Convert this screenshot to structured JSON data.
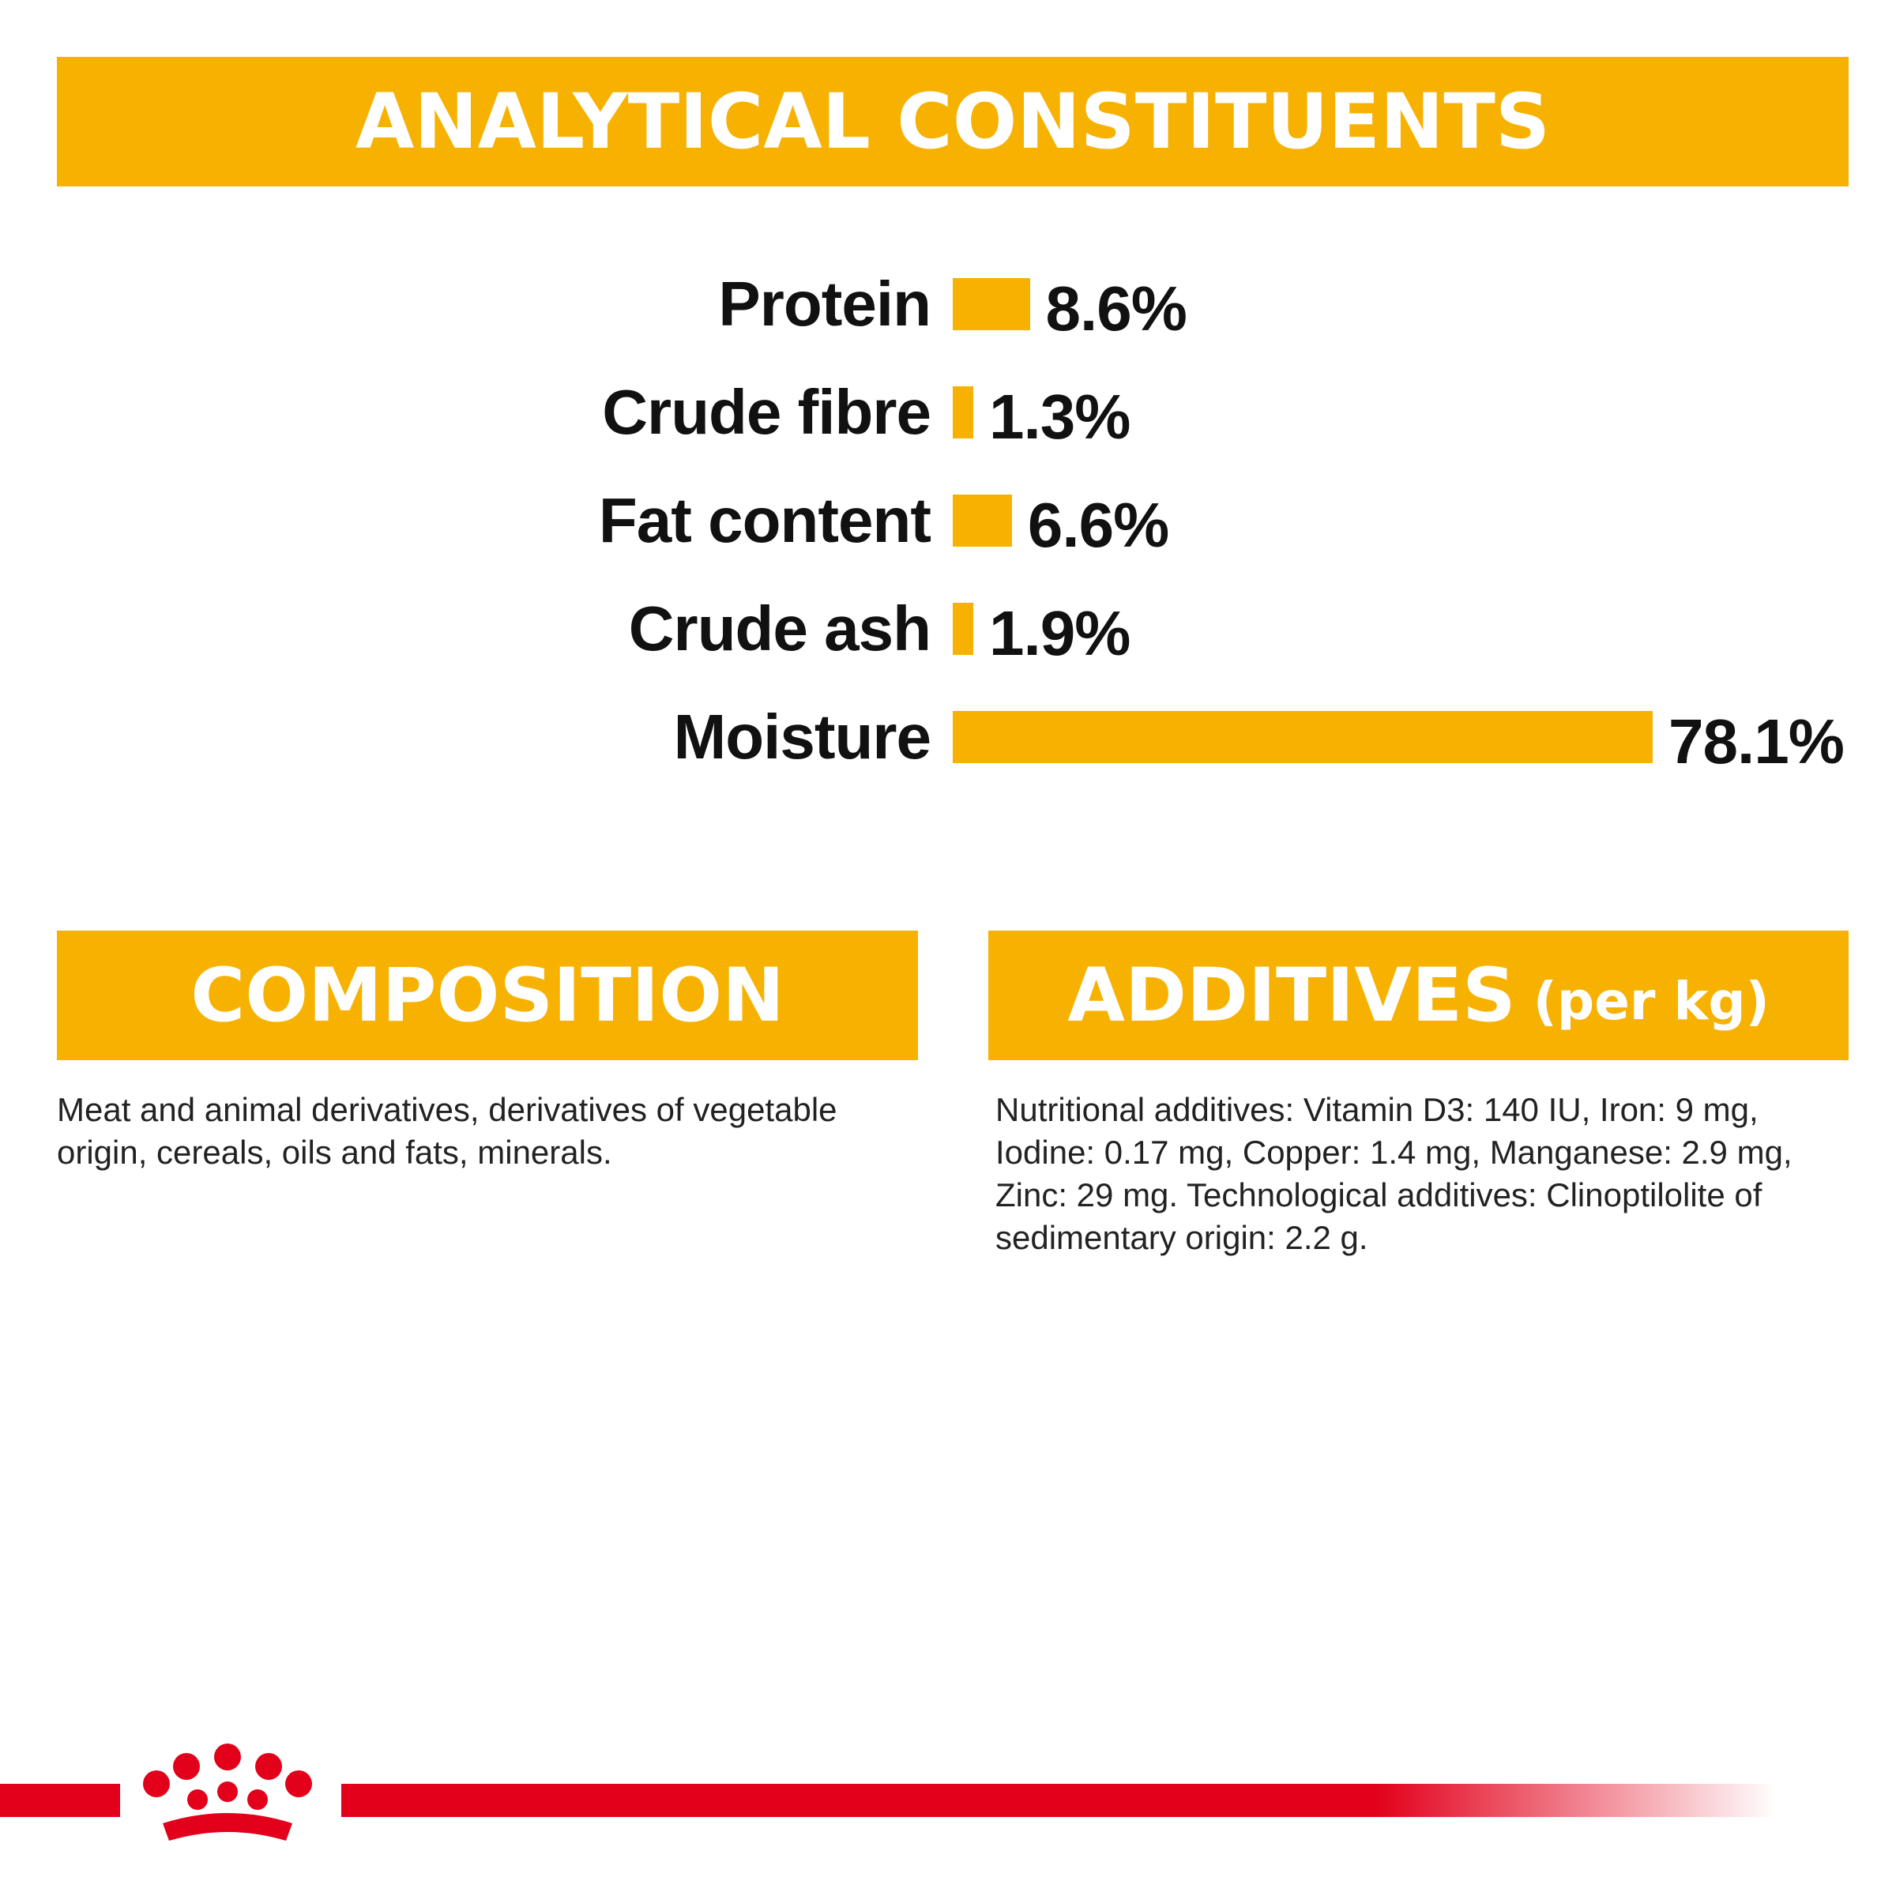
{
  "header": {
    "title": "ANALYTICAL CONSTITUENTS"
  },
  "chart_data": {
    "type": "bar",
    "orientation": "horizontal",
    "categories": [
      "Protein",
      "Crude fibre",
      "Fat content",
      "Crude ash",
      "Moisture"
    ],
    "values": [
      8.6,
      1.3,
      6.6,
      1.9,
      78.1
    ],
    "value_labels": [
      "8.6%",
      "1.3%",
      "6.6%",
      "1.9%",
      "78.1%"
    ],
    "unit": "%",
    "xlim": [
      0,
      78.1
    ],
    "grid": false,
    "legend": "none",
    "bar_color": "#f7b100"
  },
  "composition": {
    "title": "COMPOSITION",
    "text": "Meat and animal derivatives, derivatives of vegetable origin, cereals, oils and fats, minerals."
  },
  "additives": {
    "title": "ADDITIVES",
    "subtitle": "(per kg)",
    "text": "Nutritional additives: Vitamin D3: 140 IU, Iron: 9 mg, Iodine: 0.17 mg, Copper: 1.4 mg, Manganese: 2.9 mg, Zinc: 29 mg. Technological additives: Clinoptilolite of sedimentary origin: 2.2 g."
  },
  "brand": {
    "logo_icon": "royal-canin-crown-icon",
    "accent_color": "#e2001a",
    "banner_color": "#f7b100"
  }
}
